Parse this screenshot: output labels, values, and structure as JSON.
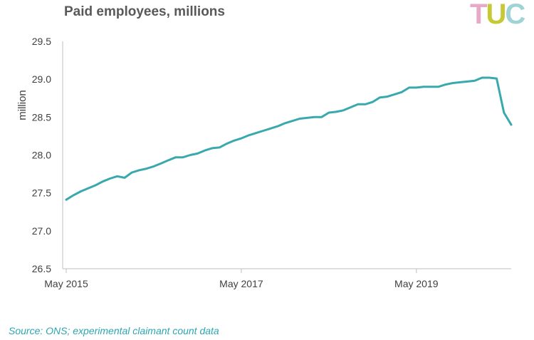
{
  "title": "Paid employees, millions",
  "logo": {
    "letters": [
      "T",
      "U",
      "C"
    ],
    "colors": [
      "#e8a9c8",
      "#c6c834",
      "#9fd3d5"
    ]
  },
  "source": "Source: ONS; experimental claimant count data",
  "chart_data": {
    "type": "line",
    "title": "Paid employees, millions",
    "ylabel": "million",
    "xlabel": "",
    "ylim": [
      26.5,
      29.5
    ],
    "yticks": [
      "26.5",
      "27.0",
      "27.5",
      "28.0",
      "28.5",
      "29.0",
      "29.5"
    ],
    "xticks": [
      "May 2015",
      "May 2017",
      "May 2019"
    ],
    "grid": false,
    "line_color": "#3aa9ad",
    "series": [
      {
        "x": [
          "2015-05",
          "2015-06",
          "2015-07",
          "2015-08",
          "2015-09",
          "2015-10",
          "2015-11",
          "2015-12",
          "2016-01",
          "2016-02",
          "2016-03",
          "2016-04",
          "2016-05",
          "2016-06",
          "2016-07",
          "2016-08",
          "2016-09",
          "2016-10",
          "2016-11",
          "2016-12",
          "2017-01",
          "2017-02",
          "2017-03",
          "2017-04",
          "2017-05",
          "2017-06",
          "2017-07",
          "2017-08",
          "2017-09",
          "2017-10",
          "2017-11",
          "2017-12",
          "2018-01",
          "2018-02",
          "2018-03",
          "2018-04",
          "2018-05",
          "2018-06",
          "2018-07",
          "2018-08",
          "2018-09",
          "2018-10",
          "2018-11",
          "2018-12",
          "2019-01",
          "2019-02",
          "2019-03",
          "2019-04",
          "2019-05",
          "2019-06",
          "2019-07",
          "2019-08",
          "2019-09",
          "2019-10",
          "2019-11",
          "2019-12",
          "2020-01",
          "2020-02",
          "2020-03",
          "2020-04",
          "2020-05",
          "2020-06"
        ],
        "values": [
          27.41,
          27.47,
          27.52,
          27.56,
          27.6,
          27.65,
          27.69,
          27.72,
          27.7,
          27.77,
          27.8,
          27.82,
          27.85,
          27.89,
          27.93,
          27.97,
          27.97,
          28.0,
          28.02,
          28.06,
          28.09,
          28.1,
          28.15,
          28.19,
          28.22,
          28.26,
          28.29,
          28.32,
          28.35,
          28.38,
          28.42,
          28.45,
          28.48,
          28.49,
          28.5,
          28.5,
          28.56,
          28.57,
          28.59,
          28.63,
          28.67,
          28.67,
          28.7,
          28.76,
          28.77,
          28.8,
          28.83,
          28.89,
          28.89,
          28.9,
          28.9,
          28.9,
          28.93,
          28.95,
          28.96,
          28.97,
          28.98,
          29.02,
          29.02,
          29.01,
          28.56,
          28.4
        ]
      }
    ]
  }
}
